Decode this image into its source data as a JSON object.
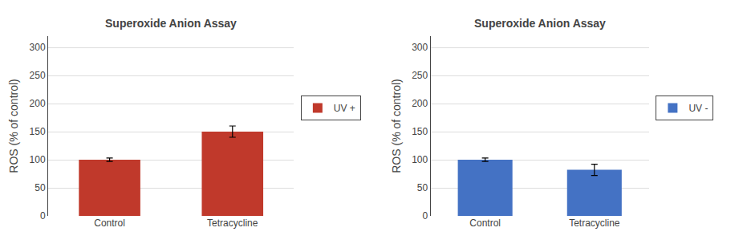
{
  "chart_data": [
    {
      "type": "bar",
      "title": "Superoxide Anion Assay",
      "ylabel": "ROS (% of control)",
      "categories": [
        "Control",
        "Tetracycline"
      ],
      "series": [
        {
          "name": "UV +",
          "color": "#C0392B",
          "values": [
            100,
            150
          ],
          "errors": [
            3,
            10
          ]
        }
      ],
      "ylim": [
        0,
        320
      ],
      "yticks": [
        0,
        50,
        100,
        150,
        200,
        250,
        300
      ],
      "grid": true,
      "legend": "right"
    },
    {
      "type": "bar",
      "title": "Superoxide Anion Assay",
      "ylabel": "ROS (% of control)",
      "categories": [
        "Control",
        "Tetracycline"
      ],
      "series": [
        {
          "name": "UV -",
          "color": "#4472C4",
          "values": [
            100,
            82
          ],
          "errors": [
            3,
            10
          ]
        }
      ],
      "ylim": [
        0,
        320
      ],
      "yticks": [
        0,
        50,
        100,
        150,
        200,
        250,
        300
      ],
      "grid": true,
      "legend": "right"
    }
  ]
}
